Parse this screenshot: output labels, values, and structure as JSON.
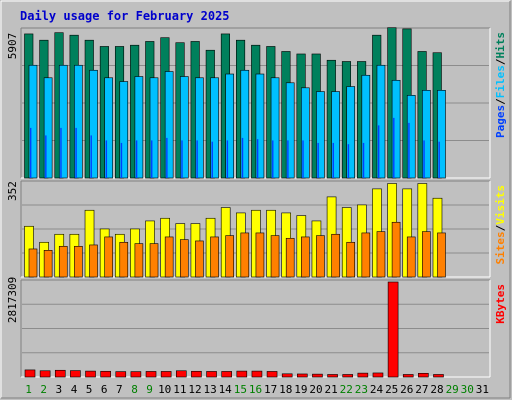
{
  "title": "Daily usage for February 2025",
  "colors": {
    "background": "#c0c0c0",
    "panel": "#c0c0c0",
    "grid": "#8c8c8c",
    "hits": "#00805c",
    "files": "#00c0ff",
    "pages": "#0040ff",
    "visits": "#ffff00",
    "sites": "#ff8000",
    "kbytes": "#ff0000",
    "weekday_label": "#000000",
    "weekend_label": "#008000",
    "nodata_label": "#008000"
  },
  "chart_data": [
    {
      "type": "bar",
      "name": "hits-files-pages",
      "title": "Daily usage for February 2025",
      "ymax_label": "5907",
      "ylim": [
        0,
        5907
      ],
      "grid": true,
      "right_label": {
        "parts": [
          "Pages",
          "/",
          "Files",
          "/",
          "Hits"
        ]
      },
      "categories": [
        "1",
        "2",
        "3",
        "4",
        "5",
        "6",
        "7",
        "8",
        "9",
        "10",
        "11",
        "12",
        "13",
        "14",
        "15",
        "16",
        "17",
        "18",
        "19",
        "20",
        "21",
        "22",
        "23",
        "24",
        "25",
        "26",
        "27",
        "28"
      ],
      "series": [
        {
          "name": "Hits",
          "values": [
            5750,
            5500,
            5800,
            5700,
            5500,
            5250,
            5250,
            5300,
            5450,
            5600,
            5400,
            5450,
            5100,
            5750,
            5500,
            5300,
            5250,
            5050,
            4950,
            4950,
            4700,
            4650,
            4650,
            5700,
            6000,
            5950,
            5050,
            5000
          ]
        },
        {
          "name": "Files",
          "values": [
            4500,
            4000,
            4500,
            4500,
            4300,
            4000,
            3850,
            4050,
            4000,
            4250,
            4050,
            4000,
            4000,
            4150,
            4300,
            4150,
            4000,
            3800,
            3600,
            3450,
            3450,
            3650,
            4100,
            4500,
            3900,
            3300,
            3500,
            3500
          ]
        },
        {
          "name": "Pages",
          "values": [
            2000,
            1700,
            2000,
            2000,
            1700,
            1500,
            1400,
            1500,
            1500,
            1600,
            1500,
            1500,
            1450,
            1500,
            1600,
            1550,
            1500,
            1500,
            1500,
            1400,
            1400,
            1350,
            1400,
            2100,
            2400,
            2200,
            1500,
            1450
          ]
        }
      ]
    },
    {
      "type": "bar",
      "name": "visits-sites",
      "ymax_label": "352",
      "ylim": [
        0,
        352
      ],
      "grid": true,
      "right_label": {
        "parts": [
          "Sites",
          "/",
          "Visits"
        ]
      },
      "categories": [
        "1",
        "2",
        "3",
        "4",
        "5",
        "6",
        "7",
        "8",
        "9",
        "10",
        "11",
        "12",
        "13",
        "14",
        "15",
        "16",
        "17",
        "18",
        "19",
        "20",
        "21",
        "22",
        "23",
        "24",
        "25",
        "26",
        "27",
        "28"
      ],
      "series": [
        {
          "name": "Visits",
          "values": [
            190,
            130,
            160,
            160,
            250,
            180,
            160,
            180,
            210,
            220,
            200,
            200,
            220,
            260,
            240,
            250,
            250,
            240,
            230,
            210,
            300,
            260,
            270,
            330,
            350,
            330,
            350,
            295
          ]
        },
        {
          "name": "Sites",
          "values": [
            105,
            100,
            115,
            115,
            120,
            150,
            130,
            125,
            125,
            150,
            140,
            135,
            150,
            155,
            165,
            165,
            155,
            145,
            150,
            155,
            160,
            130,
            165,
            170,
            205,
            150,
            170,
            165
          ]
        }
      ]
    },
    {
      "type": "bar",
      "name": "kbytes",
      "ymax_label": "2817309",
      "ylim": [
        0,
        2817309
      ],
      "grid": true,
      "right_label": {
        "parts": [
          "KBytes"
        ]
      },
      "categories": [
        "1",
        "2",
        "3",
        "4",
        "5",
        "6",
        "7",
        "8",
        "9",
        "10",
        "11",
        "12",
        "13",
        "14",
        "15",
        "16",
        "17",
        "18",
        "19",
        "20",
        "21",
        "22",
        "23",
        "24",
        "25",
        "26",
        "27",
        "28"
      ],
      "series": [
        {
          "name": "KBytes",
          "values": [
            210000,
            185000,
            200000,
            190000,
            175000,
            170000,
            160000,
            160000,
            165000,
            165000,
            185000,
            170000,
            165000,
            165000,
            175000,
            175000,
            165000,
            95000,
            90000,
            85000,
            75000,
            75000,
            115000,
            120000,
            2817309,
            75000,
            110000,
            75000
          ]
        }
      ]
    }
  ],
  "x_labels": [
    {
      "text": "1",
      "state": "weekend"
    },
    {
      "text": "2",
      "state": "weekend"
    },
    {
      "text": "3",
      "state": "weekday"
    },
    {
      "text": "4",
      "state": "weekday"
    },
    {
      "text": "5",
      "state": "weekday"
    },
    {
      "text": "6",
      "state": "weekday"
    },
    {
      "text": "7",
      "state": "weekday"
    },
    {
      "text": "8",
      "state": "weekend"
    },
    {
      "text": "9",
      "state": "weekend"
    },
    {
      "text": "10",
      "state": "weekday"
    },
    {
      "text": "11",
      "state": "weekday"
    },
    {
      "text": "12",
      "state": "weekday"
    },
    {
      "text": "13",
      "state": "weekday"
    },
    {
      "text": "14",
      "state": "weekday"
    },
    {
      "text": "15",
      "state": "weekend"
    },
    {
      "text": "16",
      "state": "weekend"
    },
    {
      "text": "17",
      "state": "weekday"
    },
    {
      "text": "18",
      "state": "weekday"
    },
    {
      "text": "19",
      "state": "weekday"
    },
    {
      "text": "20",
      "state": "weekday"
    },
    {
      "text": "21",
      "state": "weekday"
    },
    {
      "text": "22",
      "state": "weekend"
    },
    {
      "text": "23",
      "state": "weekend"
    },
    {
      "text": "24",
      "state": "weekday"
    },
    {
      "text": "25",
      "state": "weekday"
    },
    {
      "text": "26",
      "state": "weekday"
    },
    {
      "text": "27",
      "state": "weekday"
    },
    {
      "text": "28",
      "state": "weekday"
    },
    {
      "text": "29",
      "state": "nodata"
    },
    {
      "text": "30",
      "state": "nodata"
    },
    {
      "text": "31",
      "state": "weekday"
    }
  ]
}
